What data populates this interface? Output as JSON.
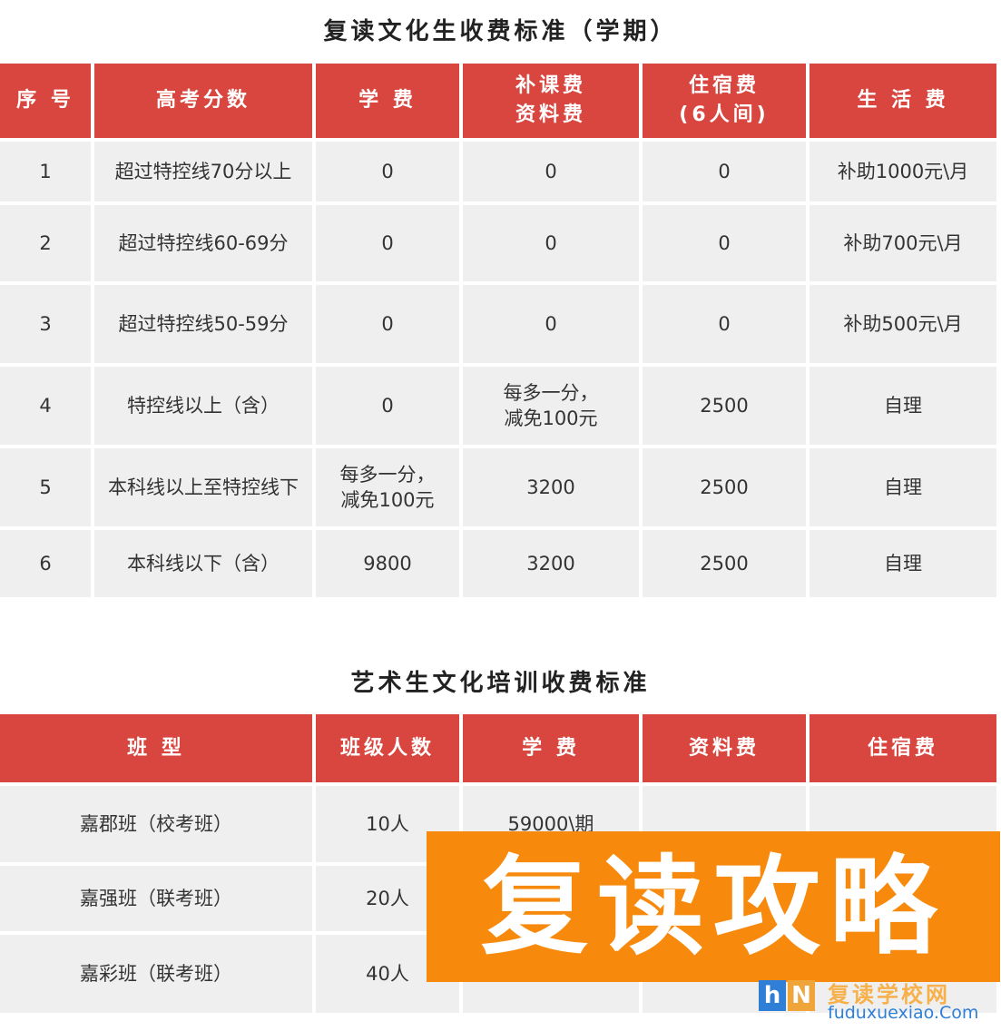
{
  "table1": {
    "title": "复读文化生收费标准（学期）",
    "headers": [
      "序 号",
      "高考分数",
      "学 费",
      "补课费\n资料费",
      "住宿费\n(6人间)",
      "生 活 费"
    ],
    "rows": [
      [
        "1",
        "超过特控线70分以上",
        "0",
        "0",
        "0",
        "补助1000元\\月"
      ],
      [
        "2",
        "超过特控线60-69分",
        "0",
        "0",
        "0",
        "补助700元\\月"
      ],
      [
        "3",
        "超过特控线50-59分",
        "0",
        "0",
        "0",
        "补助500元\\月"
      ],
      [
        "4",
        "特控线以上（含）",
        "0",
        "每多一分，\n减免100元",
        "2500",
        "自理"
      ],
      [
        "5",
        "本科线以上至特控线下",
        "每多一分，\n减免100元",
        "3200",
        "2500",
        "自理"
      ],
      [
        "6",
        "本科线以下（含）",
        "9800",
        "3200",
        "2500",
        "自理"
      ]
    ]
  },
  "table2": {
    "title": "艺术生文化培训收费标准",
    "headers": [
      "班 型",
      "班级人数",
      "学 费",
      "资料费",
      "住宿费"
    ],
    "rows": [
      [
        "嘉郡班（校考班）",
        "10人",
        "59000\\期",
        "",
        ""
      ],
      [
        "嘉强班（联考班）",
        "20人",
        "",
        "",
        ""
      ],
      [
        "嘉彩班（联考班）",
        "40人",
        "",
        "",
        ""
      ]
    ]
  },
  "banner": {
    "text": "复读攻略",
    "color": "#f78a0c"
  },
  "watermark": {
    "logo": "hN",
    "name": "复读学校网",
    "url": "fuduxuexiao.Com"
  },
  "colors": {
    "header": "#d9463f",
    "cell": "#efefef"
  }
}
